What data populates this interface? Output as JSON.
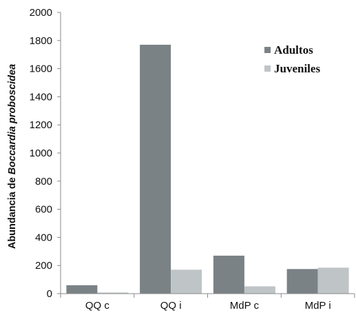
{
  "chart_data": {
    "type": "bar",
    "categories": [
      "QQ c",
      "QQ i",
      "MdP c",
      "MdP i"
    ],
    "series": [
      {
        "name": "Adultos",
        "values": [
          60,
          1770,
          270,
          175
        ],
        "color": "#7a8286"
      },
      {
        "name": "Juveniles",
        "values": [
          8,
          170,
          52,
          185
        ],
        "color": "#bfc4c6"
      }
    ],
    "ylabel_prefix": "Abundancia de ",
    "ylabel_italic": "Boccardia proboscidea",
    "xlabel": "",
    "ylim": [
      0,
      2000
    ],
    "yticks": [
      0,
      200,
      400,
      600,
      800,
      1000,
      1200,
      1400,
      1600,
      1800,
      2000
    ],
    "grid": false,
    "legend_position": "top-right"
  }
}
